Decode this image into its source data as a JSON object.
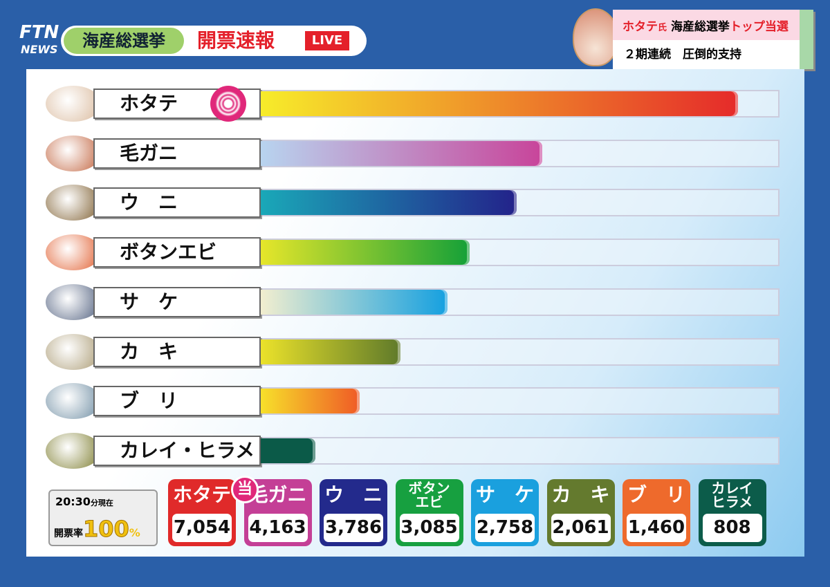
{
  "header": {
    "logo_top": "FTN",
    "logo_bottom": "NEWS",
    "program": "海産総選挙",
    "headline": "開票速報",
    "live": "LIVE"
  },
  "banner": {
    "name": "ホタテ",
    "honorific": "氏",
    "event": "海産総選挙",
    "result": "トップ当選",
    "line2": "２期連続　圧倒的支持"
  },
  "chart_data": {
    "type": "bar",
    "orientation": "horizontal",
    "categories": [
      "ホタテ",
      "毛ガニ",
      "ウ　ニ",
      "ボタンエビ",
      "サ　ケ",
      "カ　キ",
      "ブ　リ",
      "カレイ・ヒラメ"
    ],
    "values": [
      7054,
      4163,
      3786,
      3085,
      2758,
      2061,
      1460,
      808
    ],
    "value_labels": [
      "7,054",
      "4,163",
      "3,786",
      "3,085",
      "2,758",
      "2,061",
      "1,460",
      "808"
    ],
    "short_labels": [
      "ホタテ",
      "毛ガニ",
      "ウ　ニ",
      "ボタン\nエビ",
      "サ　ケ",
      "カ　キ",
      "ブ　リ",
      "カレイ\nヒラメ"
    ],
    "gradients": [
      [
        "#f7ec2a",
        "#e52a2a"
      ],
      [
        "#b8d4ef",
        "#c8449a"
      ],
      [
        "#1aa8b8",
        "#23228a"
      ],
      [
        "#e6e62a",
        "#14a038"
      ],
      [
        "#f2eecf",
        "#15a0e0"
      ],
      [
        "#ebe22a",
        "#5f7a2a"
      ],
      [
        "#f7e02a",
        "#ef5a26"
      ],
      [
        "#0b5a48",
        "#0b5a48"
      ]
    ],
    "box_colors": [
      "#e02a2a",
      "#c43f96",
      "#232a8c",
      "#17a040",
      "#1aa0de",
      "#647a2e",
      "#ee6a2c",
      "#0c5c4a"
    ],
    "winner_mark": "当",
    "time": "20:30",
    "time_suffix": "分現在",
    "turnout_label": "開票率",
    "turnout": 100,
    "turnout_unit": "%"
  }
}
